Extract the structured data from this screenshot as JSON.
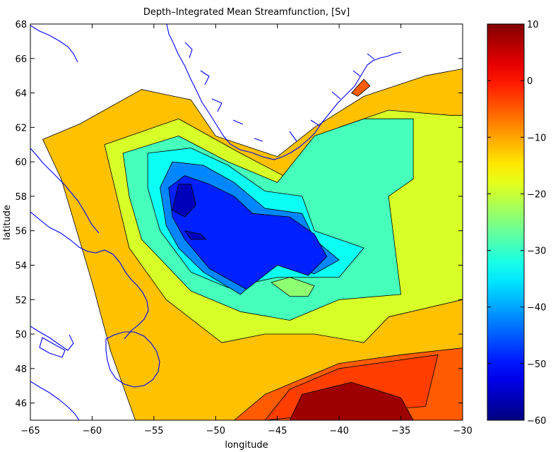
{
  "chart_data": {
    "type": "heatmap",
    "title": "Depth–Integrated Mean Streamfunction, [Sv]",
    "xlabel": "longitude",
    "ylabel": "latitude",
    "xlim": [
      -65,
      -30
    ],
    "ylim": [
      45,
      68
    ],
    "x_ticks": [
      -65,
      -60,
      -55,
      -50,
      -45,
      -40,
      -35,
      -30
    ],
    "y_ticks": [
      46,
      48,
      50,
      52,
      54,
      56,
      58,
      60,
      62,
      64,
      66,
      68
    ],
    "contour_levels": [
      -60,
      -55,
      -50,
      -45,
      -40,
      -35,
      -30,
      -25,
      -20,
      -15,
      -10,
      -5,
      0,
      5,
      10
    ],
    "colorbar": {
      "min": -60,
      "max": 10,
      "ticks": [
        -60,
        -50,
        -40,
        -30,
        -20,
        -10,
        0,
        10
      ]
    },
    "colors": {
      "land_outline": "#0000ff",
      "contour_line": "#000000",
      "background": "#ffffff"
    },
    "regions": [
      {
        "value": -12,
        "polygon": [
          [
            -56.5,
            45
          ],
          [
            -58.5,
            49
          ],
          [
            -60,
            53
          ],
          [
            -62.5,
            59
          ],
          [
            -64,
            61.3
          ],
          [
            -61,
            62.2
          ],
          [
            -56,
            64.2
          ],
          [
            -52,
            63.6
          ],
          [
            -50,
            61.5
          ],
          [
            -45,
            60.3
          ],
          [
            -42,
            62
          ],
          [
            -38,
            63.8
          ],
          [
            -33,
            65
          ],
          [
            -30,
            65.4
          ],
          [
            -30,
            45
          ]
        ]
      },
      {
        "value": -5,
        "polygon": [
          [
            -48.5,
            45
          ],
          [
            -46,
            46.5
          ],
          [
            -40,
            48.3
          ],
          [
            -35,
            48.8
          ],
          [
            -30,
            49.2
          ],
          [
            -30,
            45
          ]
        ]
      },
      {
        "value": -3,
        "polygon": [
          [
            -46,
            45
          ],
          [
            -44,
            46.8
          ],
          [
            -40,
            48
          ],
          [
            -35,
            48.5
          ],
          [
            -32,
            48.8
          ],
          [
            -33,
            45.8
          ],
          [
            -40,
            45.4
          ]
        ]
      },
      {
        "value": 8,
        "polygon": [
          [
            -44,
            45
          ],
          [
            -43,
            46.5
          ],
          [
            -39,
            47.2
          ],
          [
            -35,
            46.3
          ],
          [
            -34,
            45
          ]
        ]
      },
      {
        "value": -5,
        "polygon": [
          [
            -39,
            64
          ],
          [
            -38,
            64.8
          ],
          [
            -37.5,
            64.4
          ],
          [
            -38.5,
            63.8
          ]
        ]
      },
      {
        "value": -19,
        "polygon": [
          [
            -54,
            52
          ],
          [
            -57,
            55
          ],
          [
            -58,
            58
          ],
          [
            -59,
            61
          ],
          [
            -53,
            62.5
          ],
          [
            -48,
            60.5
          ],
          [
            -44,
            59
          ],
          [
            -40,
            62
          ],
          [
            -36,
            63
          ],
          [
            -31,
            62.7
          ],
          [
            -30,
            62.7
          ],
          [
            -30,
            52
          ],
          [
            -36,
            51
          ],
          [
            -38,
            49.5
          ],
          [
            -42,
            50
          ],
          [
            -46,
            50
          ],
          [
            -49.5,
            49.5
          ]
        ]
      },
      {
        "value": -29,
        "polygon": [
          [
            -56,
            55.5
          ],
          [
            -57,
            58
          ],
          [
            -57.5,
            60.5
          ],
          [
            -53,
            61.5
          ],
          [
            -49,
            60
          ],
          [
            -45,
            58.8
          ],
          [
            -42,
            61.5
          ],
          [
            -38,
            62.5
          ],
          [
            -34,
            62.5
          ],
          [
            -34,
            59
          ],
          [
            -36,
            58
          ],
          [
            -35,
            52.3
          ],
          [
            -40,
            52
          ],
          [
            -44,
            50.8
          ],
          [
            -48,
            51.3
          ],
          [
            -52,
            52.5
          ]
        ]
      },
      {
        "value": -33,
        "polygon": [
          [
            -54.5,
            56
          ],
          [
            -55.5,
            58.5
          ],
          [
            -55.5,
            60.5
          ],
          [
            -52,
            60.8
          ],
          [
            -49,
            59.8
          ],
          [
            -46,
            58.3
          ],
          [
            -43,
            58
          ],
          [
            -42,
            56
          ],
          [
            -38,
            55
          ],
          [
            -40,
            53.3
          ],
          [
            -45,
            53.3
          ],
          [
            -49,
            52.7
          ],
          [
            -52,
            53.6
          ]
        ]
      },
      {
        "value": -42,
        "polygon": [
          [
            -54,
            56.3
          ],
          [
            -54.5,
            58.5
          ],
          [
            -53.5,
            60
          ],
          [
            -51,
            59.8
          ],
          [
            -48.5,
            58.8
          ],
          [
            -46,
            57.3
          ],
          [
            -43,
            57
          ],
          [
            -42,
            55.5
          ],
          [
            -40,
            54.3
          ],
          [
            -42,
            53.5
          ],
          [
            -45,
            54.2
          ],
          [
            -48,
            52.3
          ],
          [
            -51,
            53.6
          ],
          [
            -53,
            55
          ]
        ]
      },
      {
        "value": -49,
        "polygon": [
          [
            -53.5,
            56.8
          ],
          [
            -53.8,
            58.5
          ],
          [
            -52.5,
            59.2
          ],
          [
            -50.5,
            58.7
          ],
          [
            -48.5,
            58
          ],
          [
            -47,
            57
          ],
          [
            -44,
            56.8
          ],
          [
            -42,
            55.8
          ],
          [
            -41,
            54.5
          ],
          [
            -42.5,
            53.4
          ],
          [
            -45,
            54
          ],
          [
            -47.5,
            52.6
          ],
          [
            -50.5,
            53.8
          ],
          [
            -52.5,
            55.5
          ]
        ]
      },
      {
        "value": -56,
        "polygon": [
          [
            -53.5,
            57.2
          ],
          [
            -53,
            58.7
          ],
          [
            -52,
            58.7
          ],
          [
            -51.6,
            57.5
          ],
          [
            -52.5,
            56.8
          ]
        ]
      },
      {
        "value": -56,
        "polygon": [
          [
            -52.5,
            56
          ],
          [
            -51.2,
            55.8
          ],
          [
            -50.8,
            55.5
          ],
          [
            -52,
            55.5
          ]
        ]
      },
      {
        "value": -24,
        "polygon": [
          [
            -44,
            52.2
          ],
          [
            -45.5,
            53
          ],
          [
            -44,
            53.3
          ],
          [
            -42,
            52.8
          ],
          [
            -42.5,
            52.2
          ]
        ]
      }
    ]
  }
}
